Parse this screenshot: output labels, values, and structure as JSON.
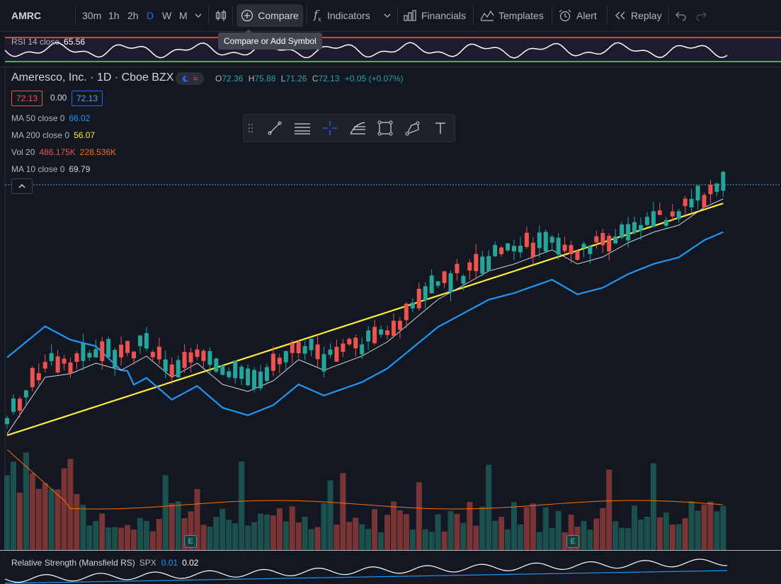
{
  "toolbar": {
    "symbol": "AMRC",
    "intervals": [
      "30m",
      "1h",
      "2h",
      "D",
      "W",
      "M"
    ],
    "active_interval": "D",
    "compare_label": "Compare",
    "indicators_label": "Indicators",
    "financials_label": "Financials",
    "templates_label": "Templates",
    "alert_label": "Alert",
    "replay_label": "Replay",
    "tooltip": "Compare or Add Symbol"
  },
  "rsi": {
    "label": "RSI 14 close",
    "value": "65.56"
  },
  "main": {
    "title": "Ameresco, Inc. · 1D · Cboe BZX",
    "ohlc": {
      "o_label": "O",
      "o": "72.36",
      "h_label": "H",
      "h": "75.88",
      "l_label": "L",
      "l": "71.26",
      "c_label": "C",
      "c": "72.13",
      "change": "+0.05 (+0.07%)"
    },
    "bid": "72.13",
    "spread": "0.00",
    "ask": "72.13",
    "ma50": {
      "label": "MA 50 close 0",
      "value": "66.02"
    },
    "ma200": {
      "label": "MA 200 close 0",
      "value": "56.07"
    },
    "vol": {
      "label": "Vol 20",
      "value1": "486.175K",
      "value2": "228.536K"
    },
    "ma10": {
      "label": "MA 10 close 0",
      "value": "69.79"
    }
  },
  "earnings_badge": "E",
  "rs": {
    "label": "Relative Strength (Mansfield RS)",
    "symbol": "SPX",
    "value1": "0.01",
    "value2": "0.02"
  },
  "colors": {
    "up": "#26a69a",
    "down": "#ef5350",
    "ma50": "#2196f3",
    "ma200": "#ffeb3b",
    "ma10": "#d1d4dc",
    "vol_ma": "#ff6d00",
    "accent": "#2962ff"
  },
  "icons": [
    "bar-style-icon",
    "compare-plus-icon",
    "fx-icon",
    "chevron-down-icon",
    "financials-icon",
    "templates-icon",
    "alarm-icon",
    "replay-icon",
    "undo-icon",
    "redo-icon",
    "drag-handle-icon",
    "trend-line-icon",
    "horizontal-lines-icon",
    "crosshair-icon",
    "fib-icon",
    "rectangle-icon",
    "brush-icon",
    "text-icon",
    "chevron-up-icon",
    "earnings-icon"
  ]
}
